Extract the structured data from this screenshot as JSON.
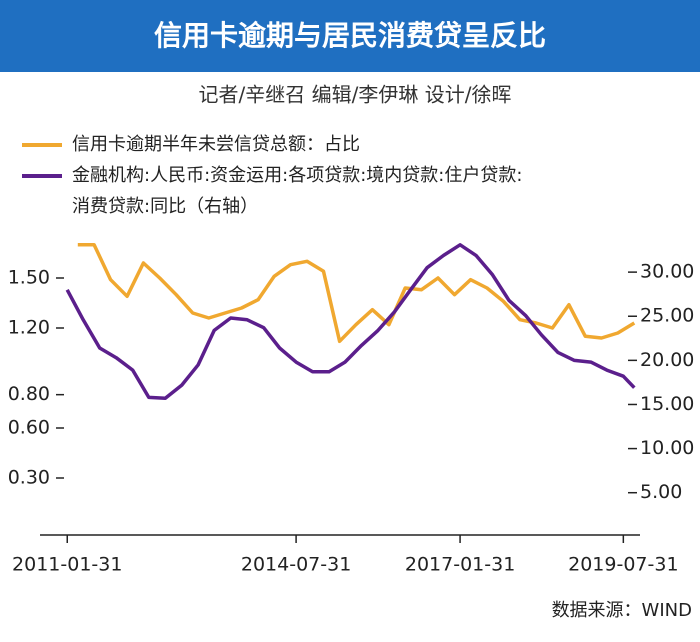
{
  "chart_data": {
    "type": "line",
    "title": "信用卡逾期与居民消费贷呈反比",
    "subtitle": "记者/辛继召  编辑/李伊琳  设计/徐晖",
    "source": "数据来源：WIND",
    "xlim": [
      "2010-09-01",
      "2019-11-01"
    ],
    "xticks": [
      "2011-01-31",
      "2014-07-31",
      "2017-01-31",
      "2019-07-31"
    ],
    "ylim": [
      0,
      1.8
    ],
    "yticks": [
      {
        "value": 1.5,
        "label": "1.50"
      },
      {
        "value": 1.2,
        "label": "1.20"
      },
      {
        "value": 0.8,
        "label": "0.80"
      },
      {
        "value": 0.6,
        "label": "0.60"
      },
      {
        "value": 0.3,
        "label": "0.30"
      }
    ],
    "y2lim": [
      1,
      35
    ],
    "y2ticks": [
      {
        "value": 30,
        "label": "30.00"
      },
      {
        "value": 25,
        "label": "25.00"
      },
      {
        "value": 20,
        "label": "20.00"
      },
      {
        "value": 15,
        "label": "15.00"
      },
      {
        "value": 10,
        "label": "10.00"
      },
      {
        "value": 5,
        "label": "5.00"
      }
    ],
    "series": [
      {
        "name": "信用卡逾期半年未尝信贷总额：占比",
        "color": "#f0a830",
        "x": [
          "2011-03-31",
          "2011-06-30",
          "2011-09-30",
          "2011-12-31",
          "2012-03-31",
          "2012-06-30",
          "2012-09-30",
          "2012-12-31",
          "2013-03-31",
          "2013-06-30",
          "2013-09-30",
          "2013-12-31",
          "2014-03-31",
          "2014-06-30",
          "2014-09-30",
          "2014-12-31",
          "2015-03-31",
          "2015-06-30",
          "2015-09-30",
          "2015-12-31",
          "2016-03-31",
          "2016-06-30",
          "2016-09-30",
          "2016-12-31",
          "2017-03-31",
          "2017-06-30",
          "2017-09-30",
          "2017-12-31",
          "2018-03-31",
          "2018-06-30",
          "2018-09-30",
          "2018-12-31",
          "2019-03-31",
          "2019-06-30",
          "2019-09-30"
        ],
        "values": [
          1.7,
          1.7,
          1.49,
          1.39,
          1.59,
          1.5,
          1.4,
          1.29,
          1.26,
          1.29,
          1.32,
          1.37,
          1.51,
          1.58,
          1.6,
          1.54,
          1.12,
          1.22,
          1.31,
          1.22,
          1.44,
          1.43,
          1.5,
          1.4,
          1.49,
          1.44,
          1.36,
          1.25,
          1.23,
          1.2,
          1.34,
          1.15,
          1.14,
          1.17,
          1.23
        ]
      },
      {
        "name": "金融机构:人民币:资金运用:各项贷款:境内贷款:住户贷款:消费贷款:同比（右轴）",
        "color": "#5b1f8c",
        "axis": "y2",
        "x": [
          "2011-01-31",
          "2011-04-30",
          "2011-07-31",
          "2011-10-31",
          "2012-01-31",
          "2012-04-30",
          "2012-07-31",
          "2012-10-31",
          "2013-01-31",
          "2013-04-30",
          "2013-07-31",
          "2013-10-31",
          "2014-01-31",
          "2014-04-30",
          "2014-07-31",
          "2014-10-31",
          "2015-01-31",
          "2015-04-30",
          "2015-07-31",
          "2015-10-31",
          "2016-01-31",
          "2016-04-30",
          "2016-07-31",
          "2016-10-31",
          "2017-01-31",
          "2017-04-30",
          "2017-07-31",
          "2017-10-31",
          "2018-01-31",
          "2018-04-30",
          "2018-07-31",
          "2018-10-31",
          "2019-01-31",
          "2019-04-30",
          "2019-07-31",
          "2019-09-30"
        ],
        "values": [
          28.0,
          24.6,
          21.4,
          20.3,
          18.9,
          15.8,
          15.7,
          17.2,
          19.5,
          23.4,
          24.8,
          24.6,
          23.7,
          21.4,
          19.8,
          18.7,
          18.7,
          19.8,
          21.7,
          23.4,
          25.5,
          28.0,
          30.5,
          31.9,
          33.1,
          31.9,
          29.7,
          26.8,
          25.1,
          22.9,
          20.9,
          20.0,
          19.8,
          18.9,
          18.2,
          16.9
        ]
      }
    ]
  }
}
